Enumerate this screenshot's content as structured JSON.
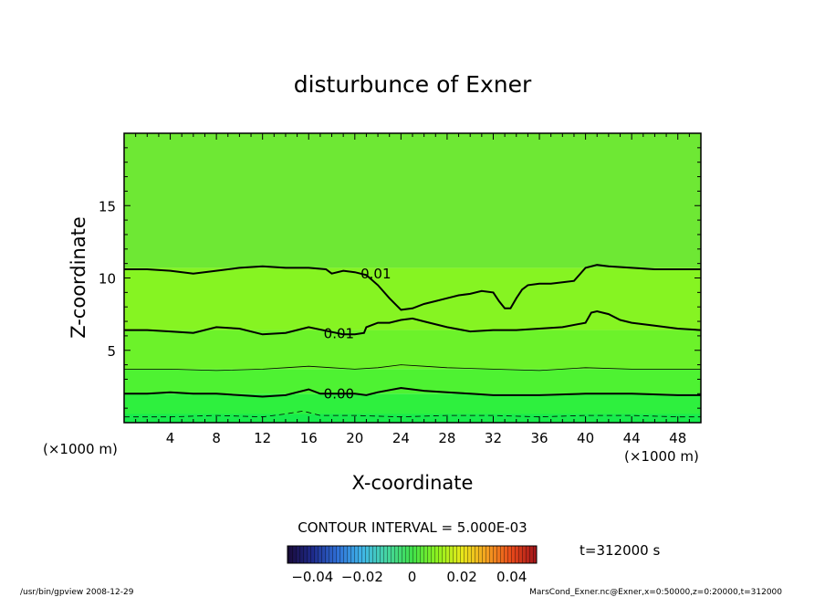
{
  "chart_data": {
    "type": "heatmap",
    "subtype": "contour",
    "title": "disturbunce of Exner",
    "xlabel": "X-coordinate",
    "ylabel": "Z-coordinate",
    "x_unit": "(×1000 m)",
    "x_unit_left": "(×1000 m)",
    "xlim": [
      0,
      50
    ],
    "ylim": [
      0,
      20
    ],
    "x_ticks": [
      4,
      8,
      12,
      16,
      20,
      24,
      28,
      32,
      36,
      40,
      44,
      48
    ],
    "y_ticks": [
      5,
      10,
      15
    ],
    "contour_interval_text": "CONTOUR INTERVAL = 5.000E-03",
    "time_text": "t=312000 s",
    "colorbar": {
      "ticks": [
        "−0.04",
        "−0.02",
        "0",
        "0.02",
        "0.04"
      ],
      "tick_values": [
        -0.04,
        -0.02,
        0,
        0.02,
        0.04
      ],
      "range": [
        -0.05,
        0.05
      ],
      "colors": [
        "#1a0a3a",
        "#1e2a8a",
        "#2f6fd6",
        "#3fb6e8",
        "#45d6a0",
        "#3fe04a",
        "#8df21e",
        "#e8e81a",
        "#f4a020",
        "#e8481a",
        "#a0141a"
      ]
    },
    "fill_bands": [
      {
        "z_bottom": 0.0,
        "z_top": 0.6,
        "color": "#18ec4c"
      },
      {
        "z_bottom": 0.6,
        "z_top": 2.0,
        "color": "#2ef03e"
      },
      {
        "z_bottom": 2.0,
        "z_top": 3.7,
        "color": "#4ef232"
      },
      {
        "z_bottom": 3.7,
        "z_top": 6.4,
        "color": "#6cf22a"
      },
      {
        "z_bottom": 6.4,
        "z_top": 10.7,
        "color": "#86f422"
      },
      {
        "z_bottom": 10.7,
        "z_top": 20.0,
        "color": "#6ee834"
      }
    ],
    "contours": [
      {
        "level": "0.01",
        "style": "solid-thick",
        "x": [
          0,
          2,
          4,
          6,
          8,
          10,
          12,
          14,
          16,
          17.5,
          18,
          19,
          20,
          21,
          22,
          23,
          24,
          25,
          26,
          27,
          28,
          29,
          30,
          31,
          32,
          32.5,
          33,
          33.5,
          34,
          34.5,
          35,
          36,
          37,
          38,
          39,
          40,
          41,
          42,
          44,
          46,
          48,
          50
        ],
        "z": [
          10.6,
          10.6,
          10.5,
          10.3,
          10.5,
          10.7,
          10.8,
          10.7,
          10.7,
          10.6,
          10.3,
          10.5,
          10.4,
          10.2,
          9.5,
          8.6,
          7.8,
          7.9,
          8.2,
          8.4,
          8.6,
          8.8,
          8.9,
          9.1,
          9.0,
          8.4,
          7.9,
          7.9,
          8.6,
          9.2,
          9.5,
          9.6,
          9.6,
          9.7,
          9.8,
          10.7,
          10.9,
          10.8,
          10.7,
          10.6,
          10.6,
          10.6
        ],
        "label_x": 20.5,
        "label_z": 10.35
      },
      {
        "level": "0.01",
        "style": "solid-thick",
        "x": [
          0,
          2,
          4,
          6,
          8,
          10,
          12,
          14,
          15.5,
          16,
          19,
          20,
          20.8,
          21,
          22,
          23,
          24,
          25,
          26,
          28,
          30,
          32,
          34,
          36,
          38,
          40,
          40.5,
          41,
          42,
          43,
          44,
          46,
          48,
          50
        ],
        "z": [
          6.4,
          6.4,
          6.3,
          6.2,
          6.6,
          6.5,
          6.1,
          6.2,
          6.5,
          6.6,
          6.1,
          6.1,
          6.2,
          6.6,
          6.9,
          6.9,
          7.1,
          7.2,
          7.0,
          6.6,
          6.3,
          6.4,
          6.4,
          6.5,
          6.6,
          6.9,
          7.6,
          7.7,
          7.5,
          7.1,
          6.9,
          6.7,
          6.5,
          6.4
        ],
        "label_x": 17.3,
        "label_z": 6.2
      },
      {
        "level": "",
        "style": "solid-thin",
        "x": [
          0,
          4,
          8,
          12,
          14,
          16,
          18,
          20,
          22,
          24,
          26,
          28,
          32,
          36,
          40,
          44,
          48,
          50
        ],
        "z": [
          3.7,
          3.7,
          3.6,
          3.7,
          3.8,
          3.9,
          3.8,
          3.7,
          3.8,
          4.0,
          3.9,
          3.8,
          3.7,
          3.6,
          3.8,
          3.7,
          3.7,
          3.7
        ],
        "label_x": null,
        "label_z": null
      },
      {
        "level": "0.00",
        "style": "solid-thick",
        "x": [
          0,
          2,
          4,
          6,
          8,
          10,
          12,
          14,
          15,
          16,
          17,
          20,
          21,
          22,
          24,
          26,
          28,
          30,
          32,
          36,
          40,
          44,
          48,
          50
        ],
        "z": [
          2.0,
          2.0,
          2.1,
          2.0,
          2.0,
          1.9,
          1.8,
          1.9,
          2.1,
          2.3,
          2.0,
          2.0,
          1.9,
          2.1,
          2.4,
          2.2,
          2.1,
          2.0,
          1.9,
          1.9,
          2.0,
          2.0,
          1.9,
          1.9
        ],
        "label_x": 17.3,
        "label_z": 2.05
      },
      {
        "level": "",
        "style": "dashed",
        "x": [
          0,
          4,
          8,
          12,
          14,
          15.5,
          17,
          20,
          24,
          28,
          32,
          36,
          40,
          44,
          48,
          50
        ],
        "z": [
          0.4,
          0.4,
          0.5,
          0.4,
          0.6,
          0.8,
          0.5,
          0.5,
          0.4,
          0.5,
          0.5,
          0.4,
          0.5,
          0.5,
          0.4,
          0.4
        ],
        "label_x": null,
        "label_z": null
      }
    ]
  },
  "footer": {
    "left": "/usr/bin/gpview   2008-12-29",
    "right": "MarsCond_Exner.nc@Exner,x=0:50000,z=0:20000,t=312000"
  }
}
